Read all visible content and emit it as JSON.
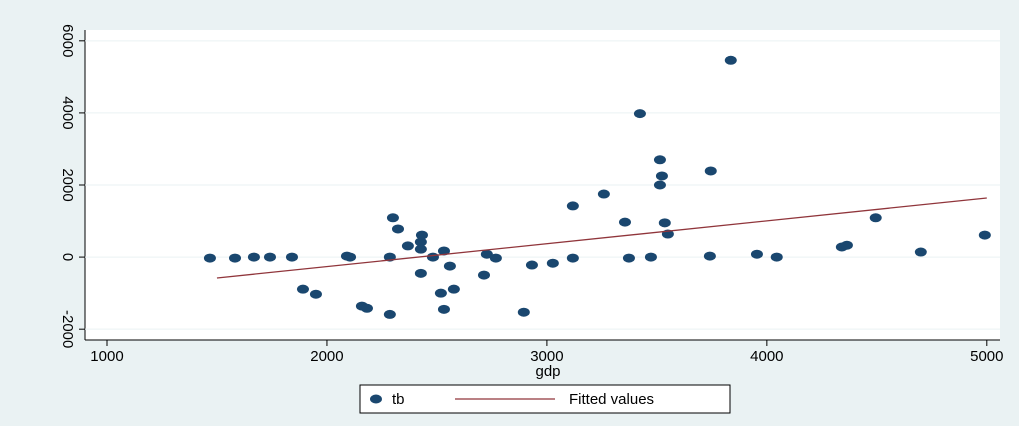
{
  "chart_data": {
    "type": "scatter",
    "x_label": "gdp",
    "xlim": [
      900,
      5060
    ],
    "xticks": [
      1000,
      2000,
      3000,
      4000,
      5000
    ],
    "ylim": [
      -2300,
      6300
    ],
    "yticks": [
      -2000,
      0,
      2000,
      4000,
      6000
    ],
    "grid": true,
    "legend": "bottom",
    "series": [
      {
        "name": "tb",
        "color": "#1a476f",
        "x": [
          1468,
          1582,
          1668,
          1741,
          1841,
          1891,
          1950,
          2091,
          2105,
          2159,
          2182,
          2286,
          2286,
          2300,
          2323,
          2368,
          2427,
          2432,
          2427,
          2427,
          2482,
          2518,
          2532,
          2532,
          2559,
          2577,
          2714,
          2727,
          2768,
          2895,
          2932,
          3027,
          3118,
          3118,
          3259,
          3355,
          3373,
          3423,
          3473,
          3514,
          3514,
          3523,
          3536,
          3550,
          3741,
          3745,
          3836,
          3955,
          4045,
          4341,
          4364,
          4495,
          4700,
          4991
        ],
        "values": [
          -28,
          -28,
          0,
          0,
          0,
          -890,
          -1030,
          28,
          0,
          -1360,
          -1420,
          -1590,
          0,
          1090,
          780,
          310,
          420,
          610,
          220,
          -450,
          0,
          -1000,
          -1450,
          170,
          -250,
          -890,
          -500,
          80,
          -28,
          -1530,
          -220,
          -170,
          -28,
          1420,
          1750,
          970,
          -28,
          3980,
          0,
          2700,
          2000,
          2250,
          950,
          640,
          28,
          2390,
          5460,
          80,
          0,
          280,
          330,
          1090,
          140,
          610
        ]
      },
      {
        "name": "Fitted values",
        "type": "line",
        "color": "#90353b",
        "x": [
          1500,
          5000
        ],
        "values": [
          -580,
          1640
        ]
      }
    ]
  }
}
